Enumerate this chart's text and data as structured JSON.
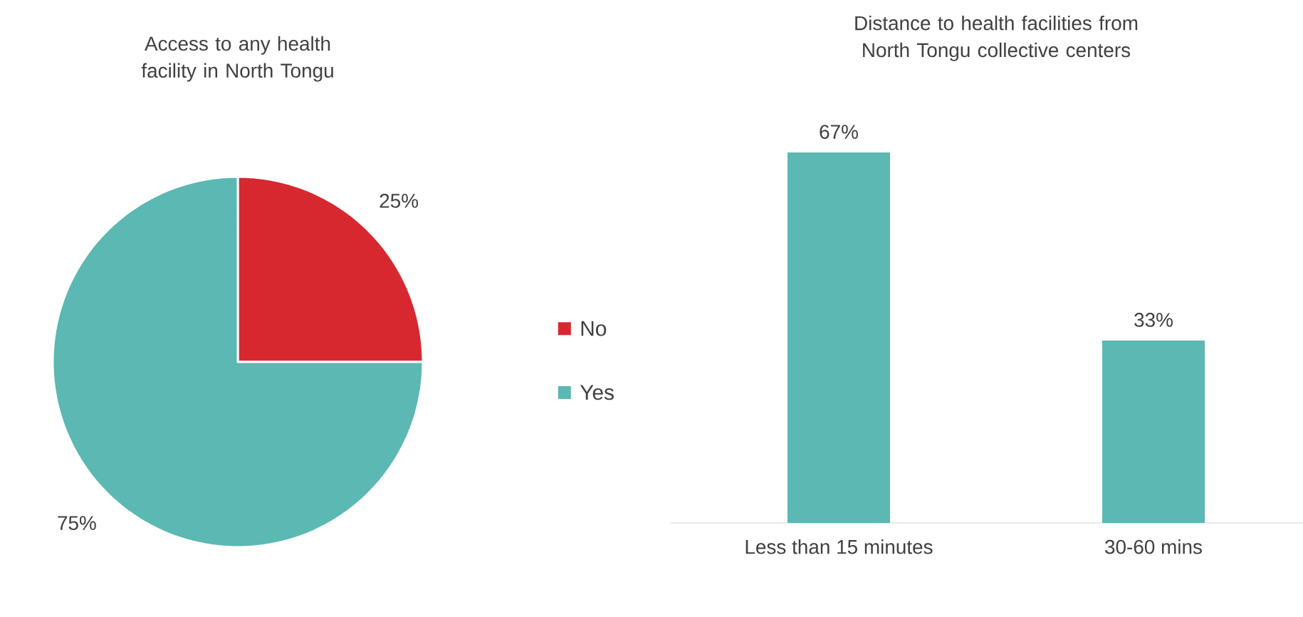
{
  "chart_data": [
    {
      "type": "pie",
      "title": "Access to any health facility in North Tongu",
      "categories": [
        "No",
        "Yes"
      ],
      "values": [
        25,
        75
      ],
      "colors": [
        "#d7282f",
        "#5bb8b2"
      ],
      "value_labels": [
        "25%",
        "75%"
      ],
      "legend": "right"
    },
    {
      "type": "bar",
      "title": "Distance  to health facilities from North Tongu collective centers",
      "categories": [
        "Less than 15 minutes",
        "30-60 mins"
      ],
      "values": [
        67,
        33
      ],
      "color": "#5bb8b2",
      "value_labels": [
        "67%",
        "33%"
      ]
    }
  ]
}
